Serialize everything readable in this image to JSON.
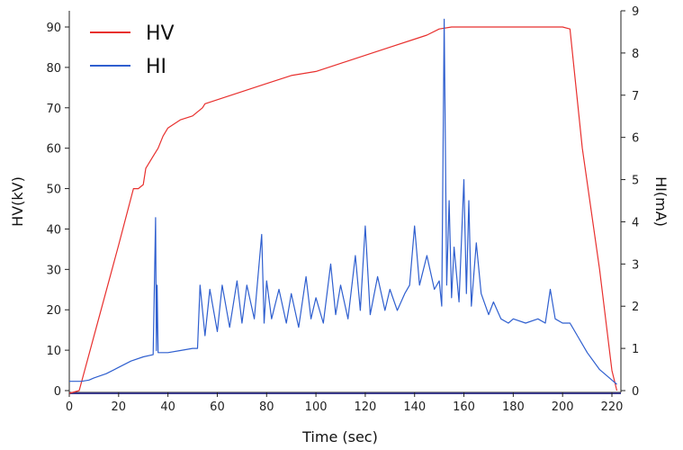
{
  "chart_data": {
    "type": "line",
    "xlabel": "Time (sec)",
    "ylabel_left": "HV(kV)",
    "ylabel_right": "HI(mA)",
    "xlim": [
      0,
      223
    ],
    "ylim_left": [
      0,
      94
    ],
    "ylim_right": [
      0,
      9
    ],
    "x_ticks": [
      "0",
      "20",
      "40",
      "60",
      "80",
      "100",
      "120",
      "140",
      "160",
      "180",
      "200",
      "220"
    ],
    "y_left_ticks": [
      "0",
      "10",
      "20",
      "30",
      "40",
      "50",
      "60",
      "70",
      "80",
      "90"
    ],
    "y_right_ticks": [
      "0",
      "1",
      "2",
      "3",
      "4",
      "5",
      "6",
      "7",
      "8",
      "9"
    ],
    "grid": false,
    "legend_position": "top-left",
    "series": [
      {
        "name": "HV",
        "axis": "left",
        "color": "#e8302e",
        "x": [
          0,
          4,
          12,
          20,
          26,
          28,
          30,
          31,
          34,
          36,
          38,
          40,
          45,
          50,
          54,
          55,
          60,
          65,
          70,
          80,
          90,
          100,
          110,
          120,
          130,
          140,
          145,
          150,
          155,
          160,
          170,
          180,
          190,
          200,
          203,
          208,
          215,
          220,
          222
        ],
        "y": [
          -1,
          0,
          18,
          36,
          50,
          50,
          51,
          55,
          58,
          60,
          63,
          65,
          67,
          68,
          70,
          71,
          72,
          73,
          74,
          76,
          78,
          79,
          81,
          83,
          85,
          87,
          88,
          89.5,
          90,
          90,
          90,
          90,
          90,
          90,
          89.5,
          60,
          30,
          5,
          0
        ]
      },
      {
        "name": "HI",
        "axis": "right",
        "color": "#2f5fcf",
        "x": [
          0,
          5,
          8,
          10,
          15,
          20,
          25,
          30,
          34,
          35,
          35.3,
          35.6,
          36,
          40,
          45,
          50,
          52,
          53,
          55,
          57,
          60,
          62,
          65,
          68,
          70,
          72,
          75,
          78,
          79,
          80,
          82,
          85,
          88,
          90,
          93,
          96,
          98,
          100,
          103,
          106,
          108,
          110,
          113,
          116,
          118,
          120,
          122,
          125,
          128,
          130,
          133,
          136,
          138,
          140,
          142,
          145,
          148,
          150,
          151,
          152,
          153,
          154,
          155,
          156,
          158,
          160,
          161,
          162,
          163,
          165,
          167,
          170,
          172,
          175,
          178,
          180,
          185,
          190,
          193,
          195,
          197,
          200,
          203,
          206,
          210,
          215,
          220,
          222
        ],
        "y": [
          0.22,
          0.22,
          0.25,
          0.3,
          0.4,
          0.55,
          0.7,
          0.8,
          0.85,
          4.1,
          0.95,
          2.5,
          0.9,
          0.9,
          0.95,
          1.0,
          1.0,
          2.5,
          1.3,
          2.4,
          1.4,
          2.5,
          1.5,
          2.6,
          1.6,
          2.5,
          1.7,
          3.7,
          1.6,
          2.6,
          1.7,
          2.4,
          1.6,
          2.3,
          1.5,
          2.7,
          1.7,
          2.2,
          1.6,
          3.0,
          1.8,
          2.5,
          1.7,
          3.2,
          1.9,
          3.9,
          1.8,
          2.7,
          1.9,
          2.4,
          1.9,
          2.3,
          2.5,
          3.9,
          2.5,
          3.2,
          2.4,
          2.6,
          2.0,
          8.8,
          2.5,
          4.5,
          2.2,
          3.4,
          2.1,
          5.0,
          2.3,
          4.5,
          2.0,
          3.5,
          2.3,
          1.8,
          2.1,
          1.7,
          1.6,
          1.7,
          1.6,
          1.7,
          1.6,
          2.4,
          1.7,
          1.6,
          1.6,
          1.3,
          0.9,
          0.5,
          0.25,
          0.15
        ]
      }
    ]
  },
  "legend": {
    "items": [
      {
        "label": "HV",
        "color": "#e8302e"
      },
      {
        "label": "HI",
        "color": "#2f5fcf"
      }
    ]
  },
  "colors": {
    "axis": "#222222",
    "baseline": "#3a3a8a"
  }
}
